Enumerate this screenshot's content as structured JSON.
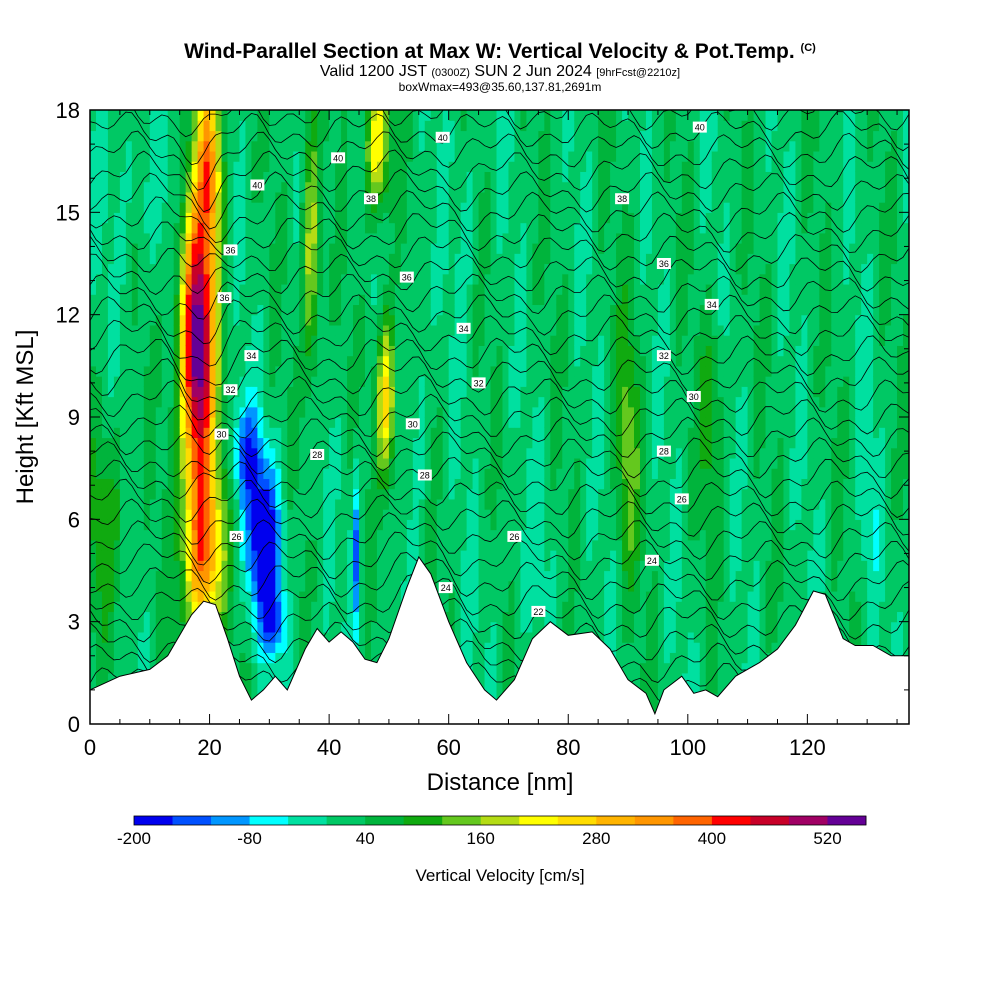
{
  "header": {
    "title": "Wind-Parallel Section at Max W: Vertical Velocity & Pot.Temp.",
    "copyright": "(C)",
    "valid_main_a": "Valid 1200 JST",
    "valid_zulu": "(0300Z)",
    "valid_main_b": "SUN 2 Jun 2024",
    "forecast": "[9hrFcst@2210z]",
    "box_info": "boxWmax=493@35.60,137.81,2691m"
  },
  "chart_data": {
    "type": "heatmap",
    "xlabel": "Distance [nm]",
    "ylabel": "Height [Kft MSL]",
    "xlim": [
      0,
      137
    ],
    "ylim": [
      0,
      18
    ],
    "x_ticks": [
      0,
      20,
      40,
      60,
      80,
      100,
      120
    ],
    "y_ticks": [
      0,
      3,
      6,
      9,
      12,
      15,
      18
    ],
    "colorbar": {
      "title": "Vertical Velocity [cm/s]",
      "levels": [
        -200,
        -160,
        -120,
        -80,
        -40,
        0,
        40,
        80,
        120,
        160,
        200,
        240,
        280,
        320,
        360,
        400,
        440,
        480,
        520,
        560
      ],
      "tick_labels": [
        "-200",
        "-80",
        "40",
        "160",
        "280",
        "400",
        "520"
      ],
      "tick_values": [
        -200,
        -80,
        40,
        160,
        280,
        400,
        520
      ],
      "colors": [
        "#0000ee",
        "#0050ff",
        "#0096ff",
        "#00ffff",
        "#00e0a0",
        "#00c864",
        "#00b43c",
        "#10aa10",
        "#64c81e",
        "#b4dc14",
        "#ffff00",
        "#ffdc00",
        "#ffb400",
        "#ff9600",
        "#ff6400",
        "#ff0000",
        "#c80028",
        "#a00064",
        "#640096"
      ]
    },
    "features": [
      {
        "x": 18,
        "y": 11,
        "sx": 2.8,
        "sy": 4.2,
        "w": 560
      },
      {
        "x": 19,
        "y": 5,
        "sx": 3.2,
        "sy": 2.6,
        "w": 330
      },
      {
        "x": 20,
        "y": 16.5,
        "sx": 2,
        "sy": 2.5,
        "w": 300
      },
      {
        "x": 29,
        "y": 5.3,
        "sx": 3,
        "sy": 2.4,
        "w": -230
      },
      {
        "x": 26,
        "y": 8,
        "sx": 2.5,
        "sy": 1.5,
        "w": -140
      },
      {
        "x": 31,
        "y": 3,
        "sx": 2,
        "sy": 1,
        "w": -120
      },
      {
        "x": 44.5,
        "y": 5,
        "sx": 0.8,
        "sy": 2.5,
        "w": -150
      },
      {
        "x": 49.5,
        "y": 9.5,
        "sx": 1.6,
        "sy": 2.5,
        "w": 250
      },
      {
        "x": 48,
        "y": 17,
        "sx": 2,
        "sy": 2,
        "w": 220
      },
      {
        "x": 37,
        "y": 14,
        "sx": 1.5,
        "sy": 4,
        "w": 170
      },
      {
        "x": 55,
        "y": 10,
        "sx": 1.5,
        "sy": 4,
        "w": -50
      },
      {
        "x": 8,
        "y": 16,
        "sx": 5,
        "sy": 3,
        "w": -35
      },
      {
        "x": 63,
        "y": 15,
        "sx": 2,
        "sy": 3,
        "w": -40
      },
      {
        "x": 90,
        "y": 8,
        "sx": 2,
        "sy": 4,
        "w": 110
      },
      {
        "x": 104,
        "y": 9,
        "sx": 2,
        "sy": 3,
        "w": 80
      },
      {
        "x": 130,
        "y": 6,
        "sx": 2,
        "sy": 3,
        "w": -40
      },
      {
        "x": 72,
        "y": 4.5,
        "sx": 8,
        "sy": 2,
        "w": -20
      },
      {
        "x": 3,
        "y": 6,
        "sx": 3,
        "sy": 3,
        "w": 90
      }
    ],
    "terrain": [
      {
        "x": 0,
        "y": 1.0
      },
      {
        "x": 5,
        "y": 1.4
      },
      {
        "x": 10,
        "y": 1.6
      },
      {
        "x": 13,
        "y": 2.0
      },
      {
        "x": 17,
        "y": 3.2
      },
      {
        "x": 19,
        "y": 3.6
      },
      {
        "x": 21,
        "y": 3.5
      },
      {
        "x": 23,
        "y": 2.5
      },
      {
        "x": 25,
        "y": 1.4
      },
      {
        "x": 27,
        "y": 0.7
      },
      {
        "x": 29,
        "y": 1.0
      },
      {
        "x": 31,
        "y": 1.4
      },
      {
        "x": 33,
        "y": 1.0
      },
      {
        "x": 36,
        "y": 2.2
      },
      {
        "x": 38,
        "y": 2.8
      },
      {
        "x": 40,
        "y": 2.4
      },
      {
        "x": 42,
        "y": 2.7
      },
      {
        "x": 44,
        "y": 2.4
      },
      {
        "x": 46,
        "y": 1.9
      },
      {
        "x": 48,
        "y": 1.8
      },
      {
        "x": 50,
        "y": 2.5
      },
      {
        "x": 53,
        "y": 4.0
      },
      {
        "x": 55,
        "y": 4.9
      },
      {
        "x": 57,
        "y": 4.4
      },
      {
        "x": 60,
        "y": 3.0
      },
      {
        "x": 63,
        "y": 1.8
      },
      {
        "x": 66,
        "y": 1.0
      },
      {
        "x": 68,
        "y": 0.7
      },
      {
        "x": 71,
        "y": 1.3
      },
      {
        "x": 74,
        "y": 2.5
      },
      {
        "x": 77,
        "y": 3.0
      },
      {
        "x": 80,
        "y": 2.6
      },
      {
        "x": 84,
        "y": 2.7
      },
      {
        "x": 87,
        "y": 2.2
      },
      {
        "x": 90,
        "y": 1.3
      },
      {
        "x": 93,
        "y": 0.9
      },
      {
        "x": 94.5,
        "y": 0.3
      },
      {
        "x": 96,
        "y": 1.0
      },
      {
        "x": 99,
        "y": 1.4
      },
      {
        "x": 101,
        "y": 0.9
      },
      {
        "x": 103,
        "y": 1.0
      },
      {
        "x": 105,
        "y": 0.8
      },
      {
        "x": 108,
        "y": 1.4
      },
      {
        "x": 112,
        "y": 1.8
      },
      {
        "x": 115,
        "y": 2.2
      },
      {
        "x": 118,
        "y": 2.9
      },
      {
        "x": 121,
        "y": 3.9
      },
      {
        "x": 123,
        "y": 3.8
      },
      {
        "x": 126,
        "y": 2.5
      },
      {
        "x": 128,
        "y": 2.3
      },
      {
        "x": 131,
        "y": 2.3
      },
      {
        "x": 134,
        "y": 2.0
      },
      {
        "x": 137,
        "y": 2.0
      }
    ],
    "isentrope_labels": [
      {
        "text": "40",
        "x": 28,
        "y": 15.8
      },
      {
        "text": "40",
        "x": 41.5,
        "y": 16.6
      },
      {
        "text": "40",
        "x": 59,
        "y": 17.2
      },
      {
        "text": "40",
        "x": 102,
        "y": 17.5
      },
      {
        "text": "38",
        "x": 47,
        "y": 15.4
      },
      {
        "text": "38",
        "x": 89,
        "y": 15.4
      },
      {
        "text": "36",
        "x": 23.5,
        "y": 13.9
      },
      {
        "text": "36",
        "x": 53,
        "y": 13.1
      },
      {
        "text": "36",
        "x": 96,
        "y": 13.5
      },
      {
        "text": "36",
        "x": 22.5,
        "y": 12.5
      },
      {
        "text": "34",
        "x": 27,
        "y": 10.8
      },
      {
        "text": "34",
        "x": 62.5,
        "y": 11.6
      },
      {
        "text": "34",
        "x": 104,
        "y": 12.3
      },
      {
        "text": "32",
        "x": 23.5,
        "y": 9.8
      },
      {
        "text": "32",
        "x": 65,
        "y": 10.0
      },
      {
        "text": "32",
        "x": 96,
        "y": 10.8
      },
      {
        "text": "30",
        "x": 22,
        "y": 8.5
      },
      {
        "text": "30",
        "x": 54,
        "y": 8.8
      },
      {
        "text": "30",
        "x": 101,
        "y": 9.6
      },
      {
        "text": "28",
        "x": 38,
        "y": 7.9
      },
      {
        "text": "28",
        "x": 56,
        "y": 7.3
      },
      {
        "text": "28",
        "x": 96,
        "y": 8.0
      },
      {
        "text": "26",
        "x": 24.5,
        "y": 5.5
      },
      {
        "text": "26",
        "x": 71,
        "y": 5.5
      },
      {
        "text": "26",
        "x": 99,
        "y": 6.6
      },
      {
        "text": "24",
        "x": 59.5,
        "y": 4.0
      },
      {
        "text": "24",
        "x": 94,
        "y": 4.8
      },
      {
        "text": "22",
        "x": 75,
        "y": 3.3
      }
    ]
  }
}
